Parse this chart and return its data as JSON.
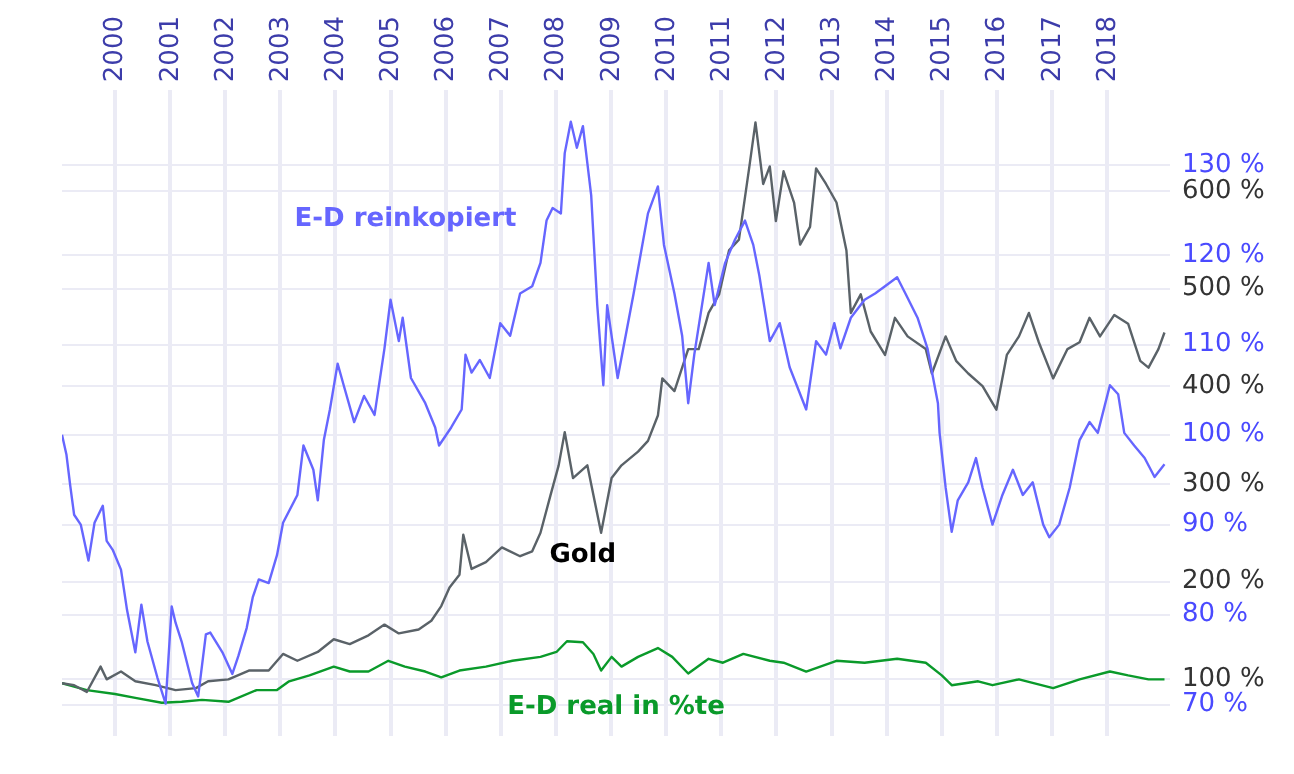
{
  "chart_data": {
    "type": "line",
    "grid": true,
    "xlim": [
      1999.04,
      2019.14
    ],
    "xticks": [
      2000,
      2001,
      2002,
      2003,
      2004,
      2005,
      2006,
      2007,
      2008,
      2009,
      2010,
      2011,
      2012,
      2013,
      2014,
      2015,
      2016,
      2017,
      2018
    ],
    "ylim": [
      42,
      703
    ],
    "yticks": [
      {
        "value": 100,
        "label": "100 %"
      },
      {
        "value": 200,
        "label": "200 %"
      },
      {
        "value": 300,
        "label": "300 %"
      },
      {
        "value": 400,
        "label": "400 %"
      },
      {
        "value": 500,
        "label": "500 %"
      },
      {
        "value": 600,
        "label": "600 %"
      }
    ],
    "y2lim": [
      66.5,
      138.3
    ],
    "y2ticks": [
      {
        "value": 70,
        "label": "70 %"
      },
      {
        "value": 80,
        "label": "80 %"
      },
      {
        "value": 90,
        "label": "90 %"
      },
      {
        "value": 100,
        "label": "100 %"
      },
      {
        "value": 110,
        "label": "110 %"
      },
      {
        "value": 120,
        "label": "120 %"
      },
      {
        "value": 130,
        "label": "130 %"
      }
    ],
    "series": [
      {
        "name": "E-D reinkopiert",
        "color": "#6666ff",
        "axis": "y2",
        "x": [
          1999.04,
          1999.12,
          1999.19,
          1999.26,
          1999.38,
          1999.52,
          1999.63,
          1999.78,
          1999.85,
          1999.96,
          2000.11,
          2000.22,
          2000.37,
          2000.48,
          2000.59,
          2000.77,
          2000.92,
          2001.03,
          2001.1,
          2001.21,
          2001.4,
          2001.51,
          2001.65,
          2001.73,
          2001.95,
          2002.13,
          2002.24,
          2002.39,
          2002.5,
          2002.61,
          2002.79,
          2002.94,
          2003.05,
          2003.31,
          2003.42,
          2003.6,
          2003.68,
          2003.79,
          2003.9,
          2004.04,
          2004.15,
          2004.34,
          2004.52,
          2004.71,
          2004.89,
          2005.0,
          2005.15,
          2005.22,
          2005.37,
          2005.63,
          2005.81,
          2005.88,
          2006.1,
          2006.29,
          2006.36,
          2006.47,
          2006.62,
          2006.8,
          2006.99,
          2007.17,
          2007.35,
          2007.57,
          2007.72,
          2007.83,
          2007.94,
          2008.09,
          2008.16,
          2008.27,
          2008.38,
          2008.49,
          2008.64,
          2008.75,
          2008.86,
          2008.93,
          2009.12,
          2009.41,
          2009.67,
          2009.85,
          2009.96,
          2010.15,
          2010.29,
          2010.4,
          2010.51,
          2010.77,
          2010.88,
          2011.07,
          2011.25,
          2011.43,
          2011.58,
          2011.69,
          2011.88,
          2012.06,
          2012.24,
          2012.54,
          2012.72,
          2012.9,
          2013.05,
          2013.16,
          2013.35,
          2013.6,
          2013.79,
          2013.97,
          2014.19,
          2014.34,
          2014.56,
          2014.74,
          2014.93,
          2014.96,
          2015.07,
          2015.18,
          2015.29,
          2015.48,
          2015.62,
          2015.74,
          2015.92,
          2016.1,
          2016.29,
          2016.47,
          2016.65,
          2016.84,
          2016.95,
          2017.13,
          2017.32,
          2017.5,
          2017.68,
          2017.83,
          2018.05,
          2018.2,
          2018.31,
          2018.49,
          2018.68,
          2018.86,
          2019.04
        ],
        "values": [
          100,
          97.8,
          94.3,
          91.1,
          90.0,
          86.0,
          90.2,
          92.1,
          88.2,
          87.2,
          85.0,
          80.5,
          75.8,
          81.1,
          77.0,
          73.0,
          70.1,
          80.9,
          79.1,
          77.0,
          72.4,
          70.9,
          77.8,
          78.0,
          75.8,
          73.4,
          75.4,
          78.5,
          81.9,
          83.9,
          83.5,
          86.6,
          90.2,
          93.3,
          98.8,
          96.1,
          92.7,
          99.4,
          102.8,
          107.9,
          105.5,
          101.4,
          104.3,
          102.2,
          109.6,
          115.0,
          110.4,
          113.0,
          106.3,
          103.5,
          100.8,
          98.8,
          100.8,
          102.8,
          108.9,
          106.9,
          108.3,
          106.3,
          112.4,
          111.0,
          115.7,
          116.5,
          119.1,
          123.8,
          125.2,
          124.6,
          131.3,
          134.8,
          131.9,
          134.3,
          126.6,
          114.4,
          105.5,
          114.4,
          106.3,
          115.7,
          124.6,
          127.6,
          121.1,
          115.7,
          111.0,
          103.5,
          108.9,
          119.1,
          114.4,
          119.1,
          121.7,
          123.8,
          121.1,
          117.7,
          110.4,
          112.4,
          107.5,
          102.8,
          110.4,
          108.9,
          112.4,
          109.6,
          113.0,
          115.0,
          115.7,
          116.5,
          117.5,
          115.7,
          113.0,
          109.6,
          103.5,
          100.2,
          94.1,
          89.2,
          92.7,
          94.7,
          97.4,
          94.1,
          90.0,
          93.3,
          96.1,
          93.3,
          94.7,
          90.0,
          88.6,
          90.0,
          94.1,
          99.4,
          101.4,
          100.2,
          105.5,
          104.5,
          100.2,
          98.8,
          97.4,
          95.3,
          96.7
        ]
      },
      {
        "name": "Gold",
        "color": "#5a6268",
        "x": [
          1999.04,
          1999.26,
          1999.49,
          1999.74,
          1999.85,
          2000.11,
          2000.37,
          2000.74,
          2001.1,
          2001.47,
          2001.69,
          2002.06,
          2002.43,
          2002.79,
          2003.05,
          2003.31,
          2003.68,
          2003.97,
          2004.26,
          2004.6,
          2004.89,
          2005.15,
          2005.51,
          2005.74,
          2005.92,
          2006.07,
          2006.25,
          2006.32,
          2006.47,
          2006.73,
          2007.02,
          2007.35,
          2007.57,
          2007.72,
          2007.9,
          2008.05,
          2008.16,
          2008.31,
          2008.57,
          2008.82,
          2009.01,
          2009.19,
          2009.49,
          2009.67,
          2009.85,
          2009.93,
          2010.15,
          2010.4,
          2010.59,
          2010.77,
          2010.96,
          2011.14,
          2011.32,
          2011.51,
          2011.62,
          2011.76,
          2011.88,
          2011.99,
          2012.13,
          2012.32,
          2012.43,
          2012.61,
          2012.72,
          2012.9,
          2013.09,
          2013.27,
          2013.35,
          2013.53,
          2013.71,
          2013.97,
          2014.15,
          2014.38,
          2014.71,
          2014.82,
          2015.07,
          2015.26,
          2015.48,
          2015.74,
          2015.99,
          2016.18,
          2016.4,
          2016.58,
          2016.76,
          2017.02,
          2017.28,
          2017.5,
          2017.68,
          2017.87,
          2018.13,
          2018.38,
          2018.6,
          2018.75,
          2018.93,
          2019.04
        ],
        "values": [
          96,
          94,
          87,
          113,
          100,
          108,
          98,
          94,
          89,
          91,
          98,
          100,
          109,
          109,
          126,
          119,
          128,
          141,
          136,
          145,
          156,
          147,
          151,
          160,
          175,
          194,
          207,
          248,
          213,
          220,
          235,
          226,
          231,
          250,
          288,
          319,
          353,
          306,
          319,
          250,
          306,
          319,
          333,
          344,
          370,
          408,
          395,
          438,
          438,
          475,
          494,
          539,
          550,
          625,
          670,
          607,
          625,
          569,
          620,
          588,
          545,
          563,
          623,
          607,
          588,
          539,
          475,
          494,
          456,
          432,
          470,
          451,
          438,
          413,
          451,
          426,
          413,
          400,
          376,
          432,
          451,
          475,
          445,
          408,
          438,
          445,
          470,
          451,
          473,
          464,
          426,
          419,
          438,
          455
        ]
      },
      {
        "name": "E-D real in %te",
        "color": "#0a9a2a",
        "x": [
          1999.04,
          1999.49,
          2000.0,
          2000.37,
          2000.85,
          2001.21,
          2001.58,
          2002.06,
          2002.57,
          2002.94,
          2003.16,
          2003.53,
          2003.97,
          2004.26,
          2004.6,
          2004.96,
          2005.26,
          2005.63,
          2005.92,
          2006.25,
          2006.73,
          2007.21,
          2007.72,
          2008.01,
          2008.2,
          2008.49,
          2008.68,
          2008.82,
          2009.01,
          2009.19,
          2009.49,
          2009.85,
          2010.11,
          2010.4,
          2010.77,
          2011.03,
          2011.4,
          2011.88,
          2012.13,
          2012.54,
          2013.09,
          2013.6,
          2014.19,
          2014.71,
          2015.0,
          2015.18,
          2015.66,
          2015.92,
          2016.4,
          2017.02,
          2017.5,
          2018.05,
          2018.38,
          2018.75,
          2019.04
        ],
        "values": [
          96,
          89,
          85,
          81,
          76,
          77,
          79,
          77,
          89,
          89,
          98,
          104,
          113,
          108,
          108,
          119,
          113,
          108,
          102,
          109,
          113,
          119,
          123,
          128,
          139,
          138,
          126,
          109,
          123,
          113,
          123,
          132,
          123,
          106,
          121,
          117,
          126,
          119,
          117,
          108,
          119,
          117,
          121,
          117,
          104,
          94,
          98,
          94,
          100,
          91,
          100,
          108,
          104,
          100,
          100
        ]
      }
    ]
  }
}
